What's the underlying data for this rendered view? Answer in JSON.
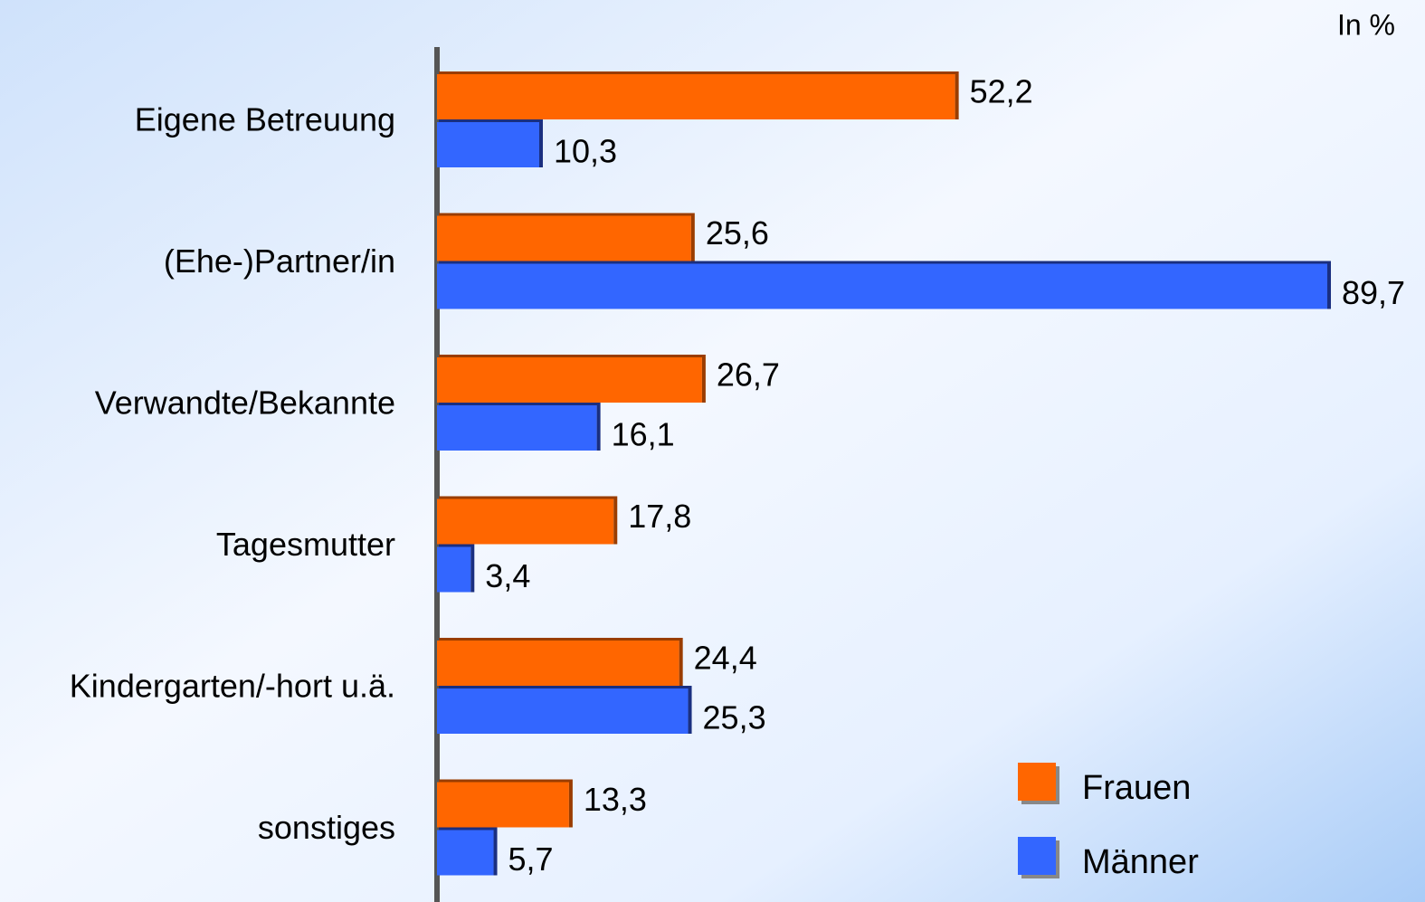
{
  "chart_data": {
    "type": "bar",
    "orientation": "horizontal",
    "unit_label": "In %",
    "categories": [
      "Eigene Betreuung",
      "(Ehe-)Partner/in",
      "Verwandte/Bekannte",
      "Tagesmutter",
      "Kindergarten/-hort u.ä.",
      "sonstiges"
    ],
    "series": [
      {
        "name": "Frauen",
        "color": "#ff6600",
        "values": [
          52.2,
          25.6,
          26.7,
          17.8,
          24.4,
          13.3
        ],
        "value_labels": [
          "52,2",
          "25,6",
          "26,7",
          "17,8",
          "24,4",
          "13,3"
        ]
      },
      {
        "name": "Männer",
        "color": "#3366ff",
        "values": [
          10.3,
          89.7,
          16.1,
          3.4,
          25.3,
          5.7
        ],
        "value_labels": [
          "10,3",
          "89,7",
          "16,1",
          "3,4",
          "25,3",
          "5,7"
        ]
      }
    ],
    "legend": "lower right"
  }
}
